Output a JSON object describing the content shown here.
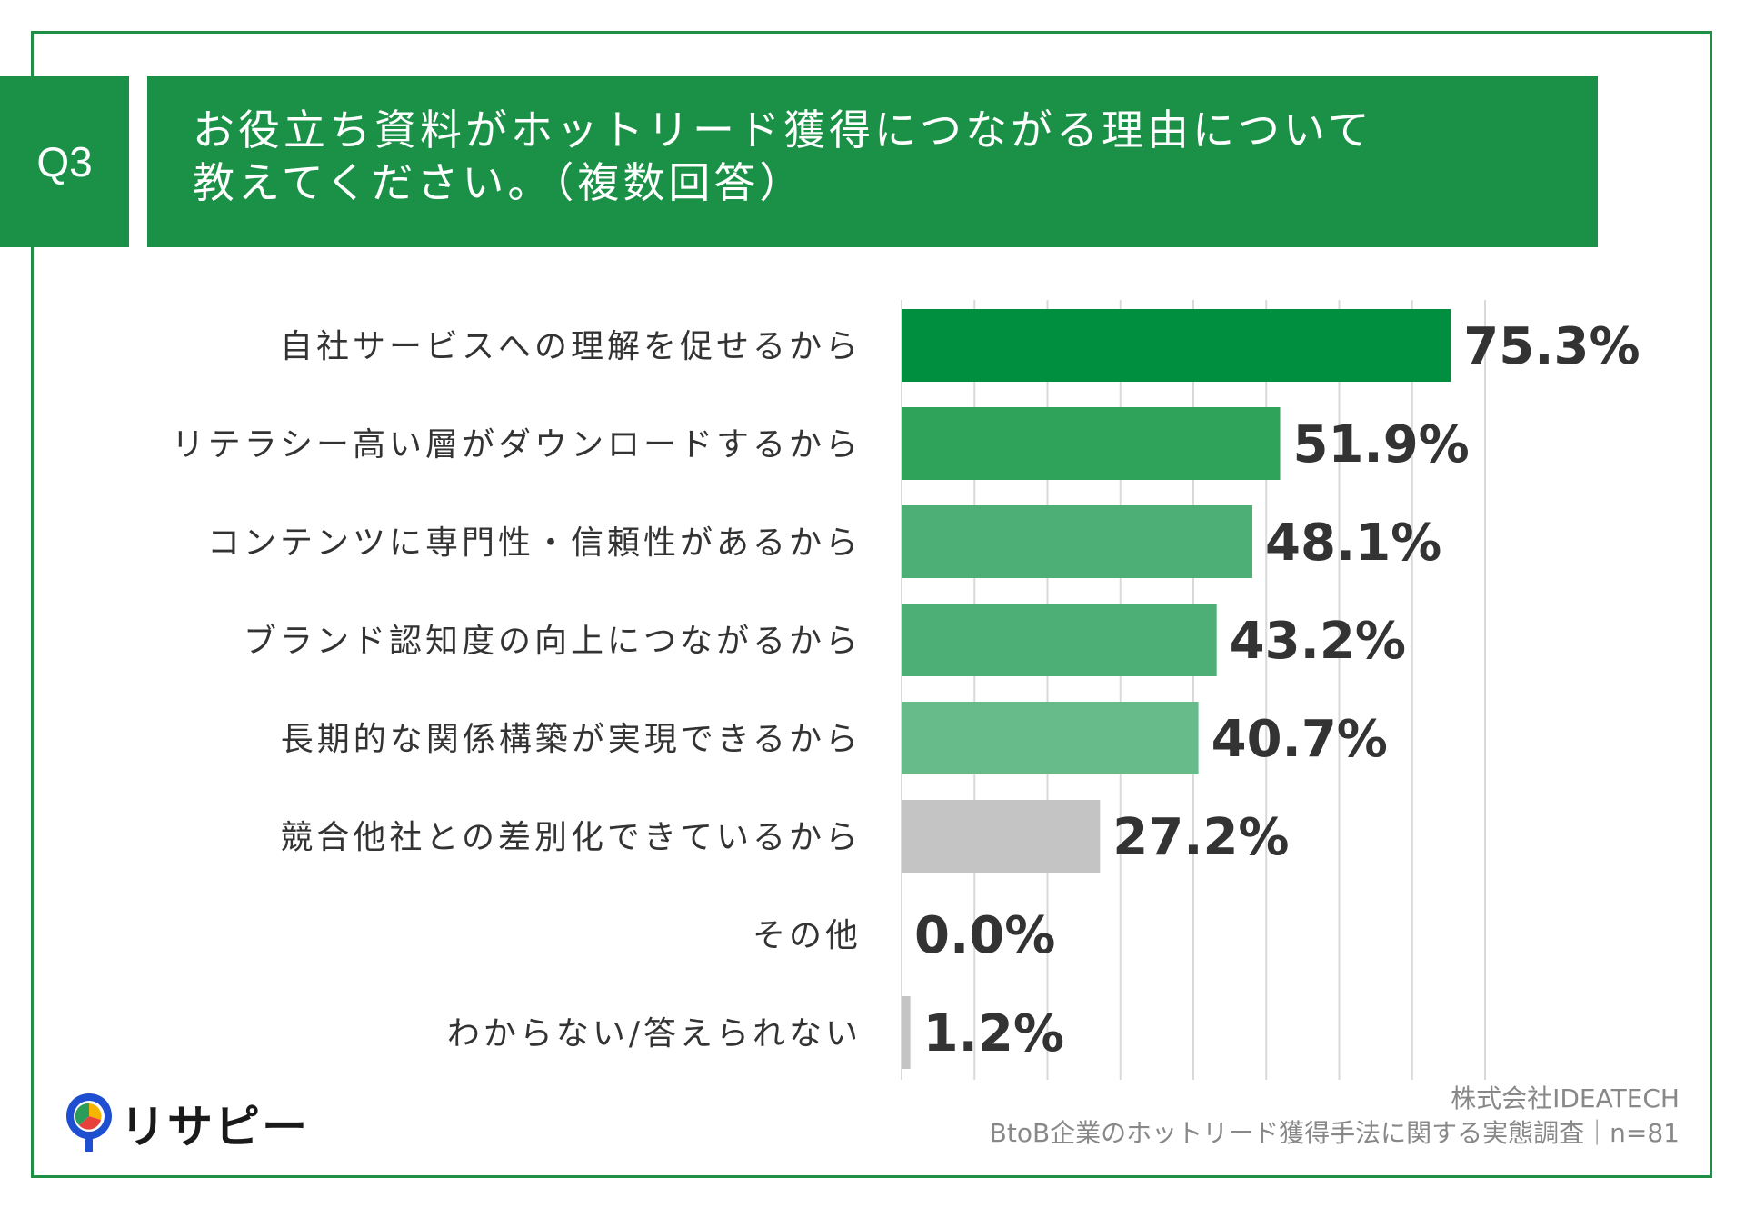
{
  "header": {
    "q_label": "Q3",
    "title_line1": "お役立ち資料がホットリード獲得につながる理由について",
    "title_line2": "教えてください。（複数回答）"
  },
  "chart_data": {
    "type": "bar",
    "orientation": "horizontal",
    "categories": [
      "自社サービスへの理解を促せるから",
      "リテラシー高い層がダウンロードするから",
      "コンテンツに専門性・信頼性があるから",
      "ブランド認知度の向上につながるから",
      "長期的な関係構築が実現できるから",
      "競合他社との差別化できているから",
      "その他",
      "わからない/答えられない"
    ],
    "values": [
      75.3,
      51.9,
      48.1,
      43.2,
      40.7,
      27.2,
      0.0,
      1.2
    ],
    "value_labels": [
      "75.3%",
      "51.9%",
      "48.1%",
      "43.2%",
      "40.7%",
      "27.2%",
      "0.0%",
      "1.2%"
    ],
    "bar_colors": [
      "#008f3e",
      "#2fa35a",
      "#4daf75",
      "#4daf75",
      "#67bb8b",
      "#c4c4c4",
      "#c4c4c4",
      "#c4c4c4"
    ],
    "xlim": [
      0,
      80
    ],
    "grid": true
  },
  "footer": {
    "logo_text": "リサピー",
    "company": "株式会社IDEATECH",
    "survey": "BtoB企業のホットリード獲得手法に関する実態調査｜n=81"
  }
}
